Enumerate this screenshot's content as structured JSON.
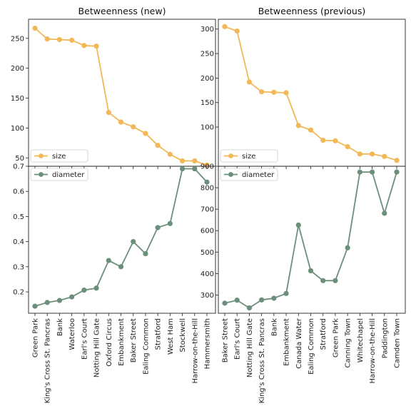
{
  "chart_data": [
    {
      "type": "line",
      "title": "Betweenness (new)",
      "xlabel": "",
      "ylabel": "",
      "categories": [
        "Green Park",
        "King's Cross St. Pancras",
        "Bank",
        "Waterloo",
        "Earl's Court",
        "Notting Hill Gate",
        "Oxford Circus",
        "Embankment",
        "Baker Street",
        "Ealing Common",
        "Stratford",
        "West Ham",
        "Stockwell",
        "Harrow-on-the-Hill",
        "Hammersmith"
      ],
      "series": [
        {
          "name": "size",
          "values": [
            267,
            249,
            248,
            247,
            238,
            237,
            126,
            110,
            102,
            91,
            71,
            56,
            45,
            45,
            38
          ],
          "color": "#f2b857"
        }
      ],
      "ylim": [
        36,
        282
      ],
      "yticks": [
        50,
        100,
        150,
        200,
        250
      ],
      "legend": "bottom-left",
      "grid": false
    },
    {
      "type": "line",
      "title": "Betweenness (previous)",
      "xlabel": "",
      "ylabel": "",
      "categories": [
        "Baker Street",
        "Earl's Court",
        "Notting Hill Gate",
        "King's Cross St. Pancras",
        "Bank",
        "Embankment",
        "Canada Water",
        "Ealing Common",
        "Stratford",
        "Green Park",
        "Canning Town",
        "Whitechapel",
        "Harrow-on-the-Hill",
        "Paddington",
        "Camden Town"
      ],
      "series": [
        {
          "name": "size",
          "values": [
            305,
            296,
            192,
            172,
            171,
            170,
            103,
            94,
            73,
            72,
            60,
            45,
            45,
            40,
            32
          ],
          "color": "#f2b857"
        }
      ],
      "ylim": [
        20,
        320
      ],
      "yticks": [
        100,
        150,
        200,
        250,
        300
      ],
      "legend": "bottom-left",
      "grid": false
    },
    {
      "type": "line",
      "title": "",
      "xlabel": "",
      "ylabel": "",
      "categories": [
        "Green Park",
        "King's Cross St. Pancras",
        "Bank",
        "Waterloo",
        "Earl's Court",
        "Notting Hill Gate",
        "Oxford Circus",
        "Embankment",
        "Baker Street",
        "Ealing Common",
        "Stratford",
        "West Ham",
        "Stockwell",
        "Harrow-on-the-Hill",
        "Hammersmith"
      ],
      "series": [
        {
          "name": "diameter",
          "values": [
            0.143,
            0.158,
            0.166,
            0.18,
            0.207,
            0.215,
            0.325,
            0.3,
            0.4,
            0.352,
            0.456,
            0.472,
            0.69,
            0.69,
            0.637
          ],
          "color": "#6b8f7b"
        }
      ],
      "ylim": [
        0.115,
        0.7
      ],
      "yticks": [
        0.2,
        0.3,
        0.4,
        0.5,
        0.6,
        0.7
      ],
      "ytick_labels": [
        "0.2",
        "0.3",
        "0.4",
        "0.5",
        "0.6",
        "0.7"
      ],
      "legend": "top-left",
      "grid": false
    },
    {
      "type": "line",
      "title": "",
      "xlabel": "",
      "ylabel": "",
      "categories": [
        "Baker Street",
        "Earl's Court",
        "Notting Hill Gate",
        "King's Cross St. Pancras",
        "Bank",
        "Embankment",
        "Canada Water",
        "Ealing Common",
        "Stratford",
        "Green Park",
        "Canning Town",
        "Whitechapel",
        "Harrow-on-the-Hill",
        "Paddington",
        "Camden Town"
      ],
      "series": [
        {
          "name": "diameter",
          "values": [
            262,
            276,
            240,
            277,
            285,
            307,
            626,
            413,
            367,
            367,
            520,
            873,
            873,
            681,
            873
          ],
          "color": "#6b8f7b"
        }
      ],
      "ylim": [
        215,
        900
      ],
      "yticks": [
        300,
        400,
        500,
        600,
        700,
        800,
        900
      ],
      "legend": "top-left",
      "grid": false
    }
  ]
}
